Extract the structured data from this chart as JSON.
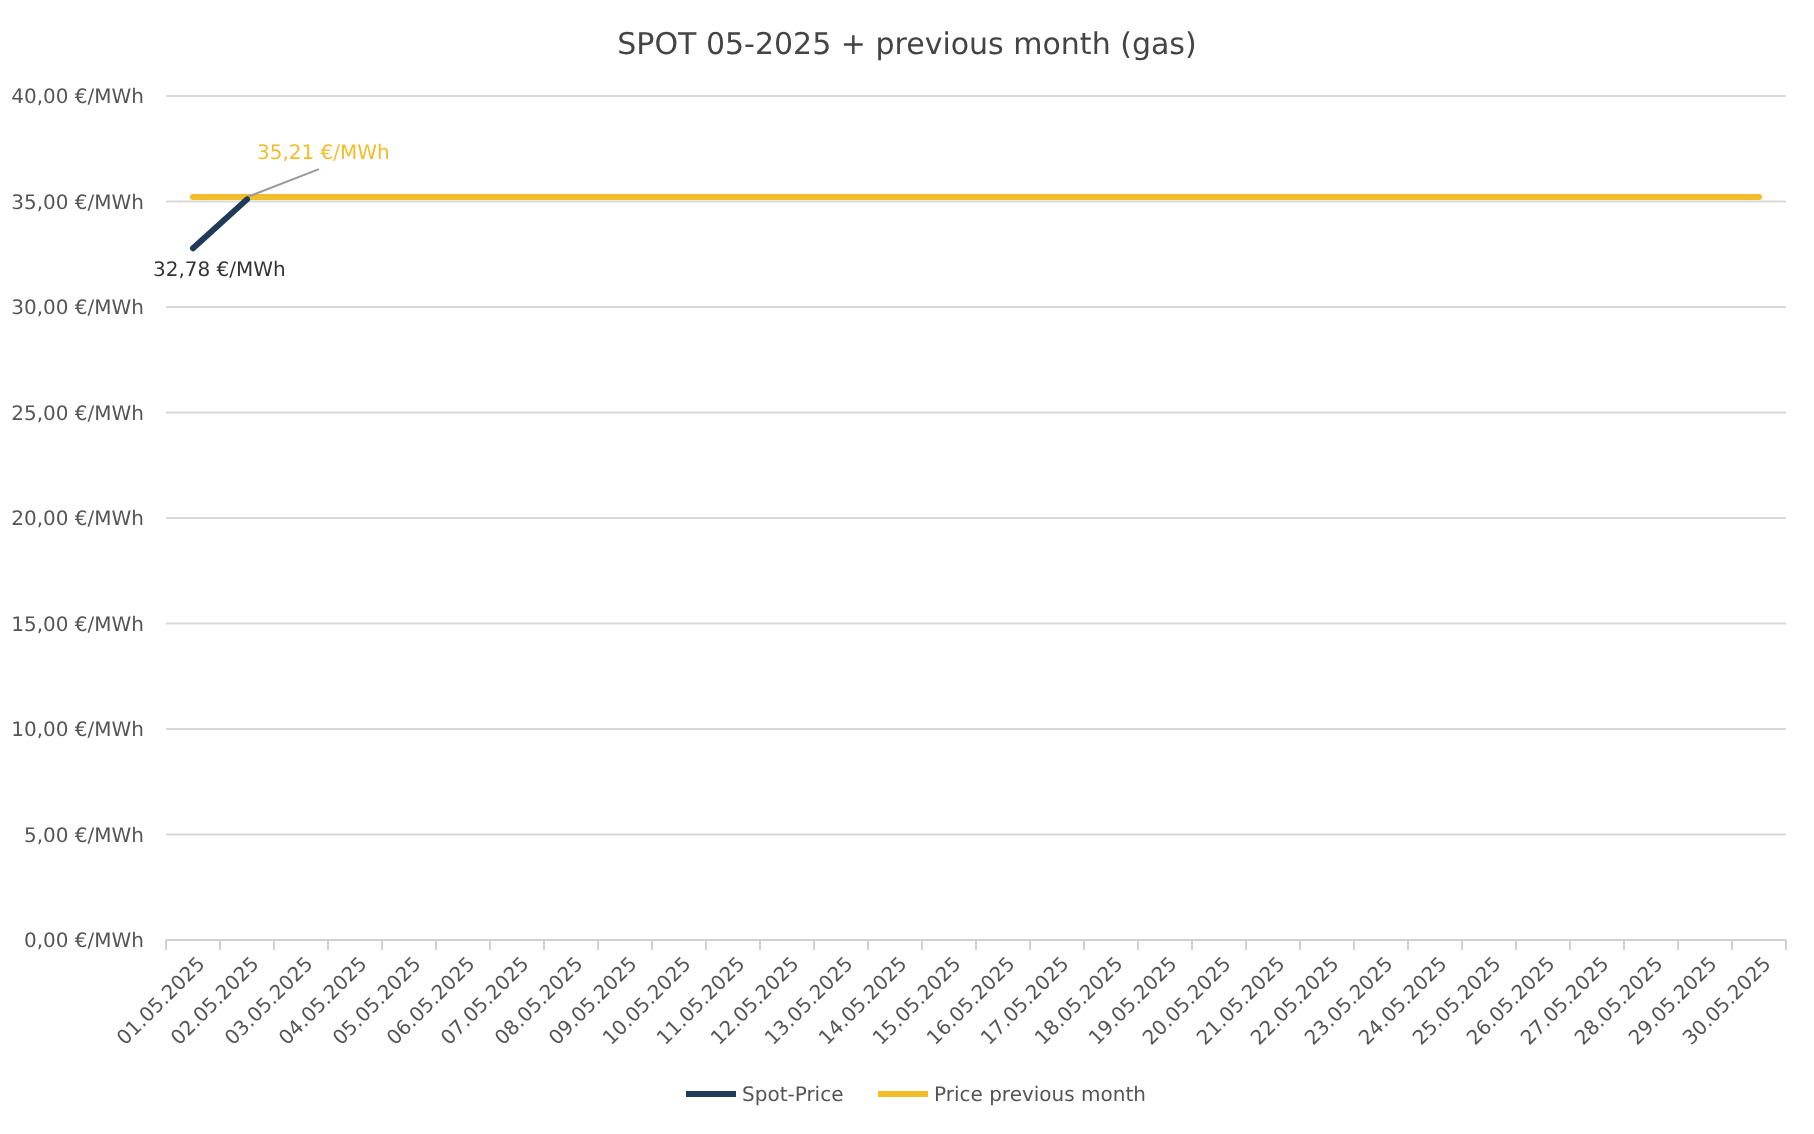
{
  "chart_data": {
    "type": "line",
    "title": "SPOT 05-2025 + previous month (gas)",
    "categories": [
      "01.05.2025",
      "02.05.2025",
      "03.05.2025",
      "04.05.2025",
      "05.05.2025",
      "06.05.2025",
      "07.05.2025",
      "08.05.2025",
      "09.05.2025",
      "10.05.2025",
      "11.05.2025",
      "12.05.2025",
      "13.05.2025",
      "14.05.2025",
      "15.05.2025",
      "16.05.2025",
      "17.05.2025",
      "18.05.2025",
      "19.05.2025",
      "20.05.2025",
      "21.05.2025",
      "22.05.2025",
      "23.05.2025",
      "24.05.2025",
      "25.05.2025",
      "26.05.2025",
      "27.05.2025",
      "28.05.2025",
      "29.05.2025",
      "30.05.2025"
    ],
    "series": [
      {
        "name": "Spot-Price",
        "color": "#1f3b57",
        "values": [
          32.78,
          35.1,
          null,
          null,
          null,
          null,
          null,
          null,
          null,
          null,
          null,
          null,
          null,
          null,
          null,
          null,
          null,
          null,
          null,
          null,
          null,
          null,
          null,
          null,
          null,
          null,
          null,
          null,
          null,
          null
        ],
        "value_labels": [
          "32,78 €/MWh",
          null,
          null,
          null,
          null,
          null,
          null,
          null,
          null,
          null,
          null,
          null,
          null,
          null,
          null,
          null,
          null,
          null,
          null,
          null,
          null,
          null,
          null,
          null,
          null,
          null,
          null,
          null,
          null,
          null
        ]
      },
      {
        "name": "Price previous month",
        "color": "#f2bd29",
        "values": [
          35.21,
          35.21,
          35.21,
          35.21,
          35.21,
          35.21,
          35.21,
          35.21,
          35.21,
          35.21,
          35.21,
          35.21,
          35.21,
          35.21,
          35.21,
          35.21,
          35.21,
          35.21,
          35.21,
          35.21,
          35.21,
          35.21,
          35.21,
          35.21,
          35.21,
          35.21,
          35.21,
          35.21,
          35.21,
          35.21
        ],
        "value_labels": [
          null,
          "35,21 €/MWh",
          null,
          null,
          null,
          null,
          null,
          null,
          null,
          null,
          null,
          null,
          null,
          null,
          null,
          null,
          null,
          null,
          null,
          null,
          null,
          null,
          null,
          null,
          null,
          null,
          null,
          null,
          null,
          null
        ]
      }
    ],
    "ylim": [
      0,
      40
    ],
    "yticks": [
      {
        "value": 0,
        "label": "0,00 €/MWh"
      },
      {
        "value": 5,
        "label": "5,00 €/MWh"
      },
      {
        "value": 10,
        "label": "10,00 €/MWh"
      },
      {
        "value": 15,
        "label": "15,00 €/MWh"
      },
      {
        "value": 20,
        "label": "20,00 €/MWh"
      },
      {
        "value": 25,
        "label": "25,00 €/MWh"
      },
      {
        "value": 30,
        "label": "30,00 €/MWh"
      },
      {
        "value": 35,
        "label": "35,00 €/MWh"
      },
      {
        "value": 40,
        "label": "40,00 €/MWh"
      }
    ],
    "grid": "y",
    "legend": "bottom",
    "marker": "none",
    "line_style": "solid"
  }
}
